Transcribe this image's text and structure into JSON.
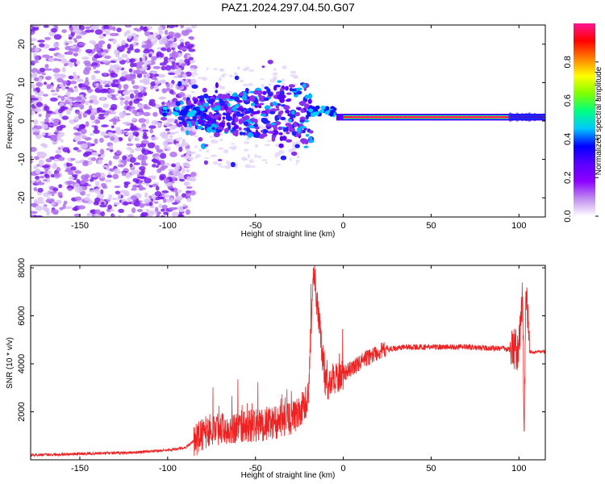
{
  "title": "PAZ1.2024.297.04.50.G07",
  "chart_data": [
    {
      "type": "heatmap",
      "title": "PAZ1.2024.297.04.50.G07",
      "xlabel": "Height of straight line (km)",
      "ylabel": "Frequency (Hz)",
      "xlim": [
        -178,
        115
      ],
      "ylim": [
        -25,
        25
      ],
      "x_ticks": [
        -150,
        -100,
        -50,
        0,
        50,
        100
      ],
      "y_ticks": [
        -20,
        -10,
        0,
        10,
        20
      ],
      "colorbar": {
        "label": "Normalized spectral amplitude",
        "range": [
          0,
          1
        ],
        "ticks": [
          "0.0",
          "0.2",
          "0.4",
          "0.6",
          "0.8"
        ],
        "colormap": [
          "#ffffff",
          "#c08cf0",
          "#8c00ff",
          "#5a00ff",
          "#0000ff",
          "#00c8ff",
          "#00ff80",
          "#80ff00",
          "#ffff00",
          "#ff8000",
          "#ff0000",
          "#ff1493"
        ]
      },
      "features": [
        {
          "name": "scattered low-amplitude noise",
          "x_range": [
            -178,
            -95
          ],
          "freq_range": [
            -25,
            25
          ],
          "amplitude": 0.12
        },
        {
          "name": "transition region",
          "x_range": [
            -95,
            -18
          ],
          "freq_center": 2,
          "freq_spread": 8,
          "amplitude": 0.3
        },
        {
          "name": "strong carrier line",
          "x_range": [
            0,
            115
          ],
          "freq": 1,
          "amplitude": 1.0
        }
      ]
    },
    {
      "type": "line",
      "xlabel": "Height of straight line (km)",
      "ylabel": "SNR (10 * v/v)",
      "xlim": [
        -178,
        115
      ],
      "ylim": [
        0,
        8100
      ],
      "x_ticks": [
        -150,
        -100,
        -50,
        0,
        50,
        100
      ],
      "y_ticks": [
        2000,
        4000,
        6000,
        8000
      ],
      "color": "#ee2222",
      "x": [
        -178,
        -150,
        -120,
        -100,
        -90,
        -83,
        -75,
        -60,
        -45,
        -30,
        -25,
        -20,
        -17,
        -10,
        -5,
        0,
        5,
        10,
        15,
        20,
        25,
        30,
        35,
        40,
        50,
        60,
        70,
        80,
        90,
        95,
        100,
        102,
        103,
        104,
        106,
        110,
        115
      ],
      "values": [
        200,
        250,
        300,
        400,
        500,
        900,
        1300,
        1350,
        1450,
        1700,
        1950,
        2600,
        8000,
        3100,
        3400,
        3600,
        3800,
        4100,
        4300,
        4500,
        4600,
        4650,
        4700,
        4700,
        4700,
        4700,
        4700,
        4650,
        4650,
        4600,
        4600,
        6800,
        1200,
        7000,
        4500,
        4500,
        4500
      ]
    }
  ]
}
